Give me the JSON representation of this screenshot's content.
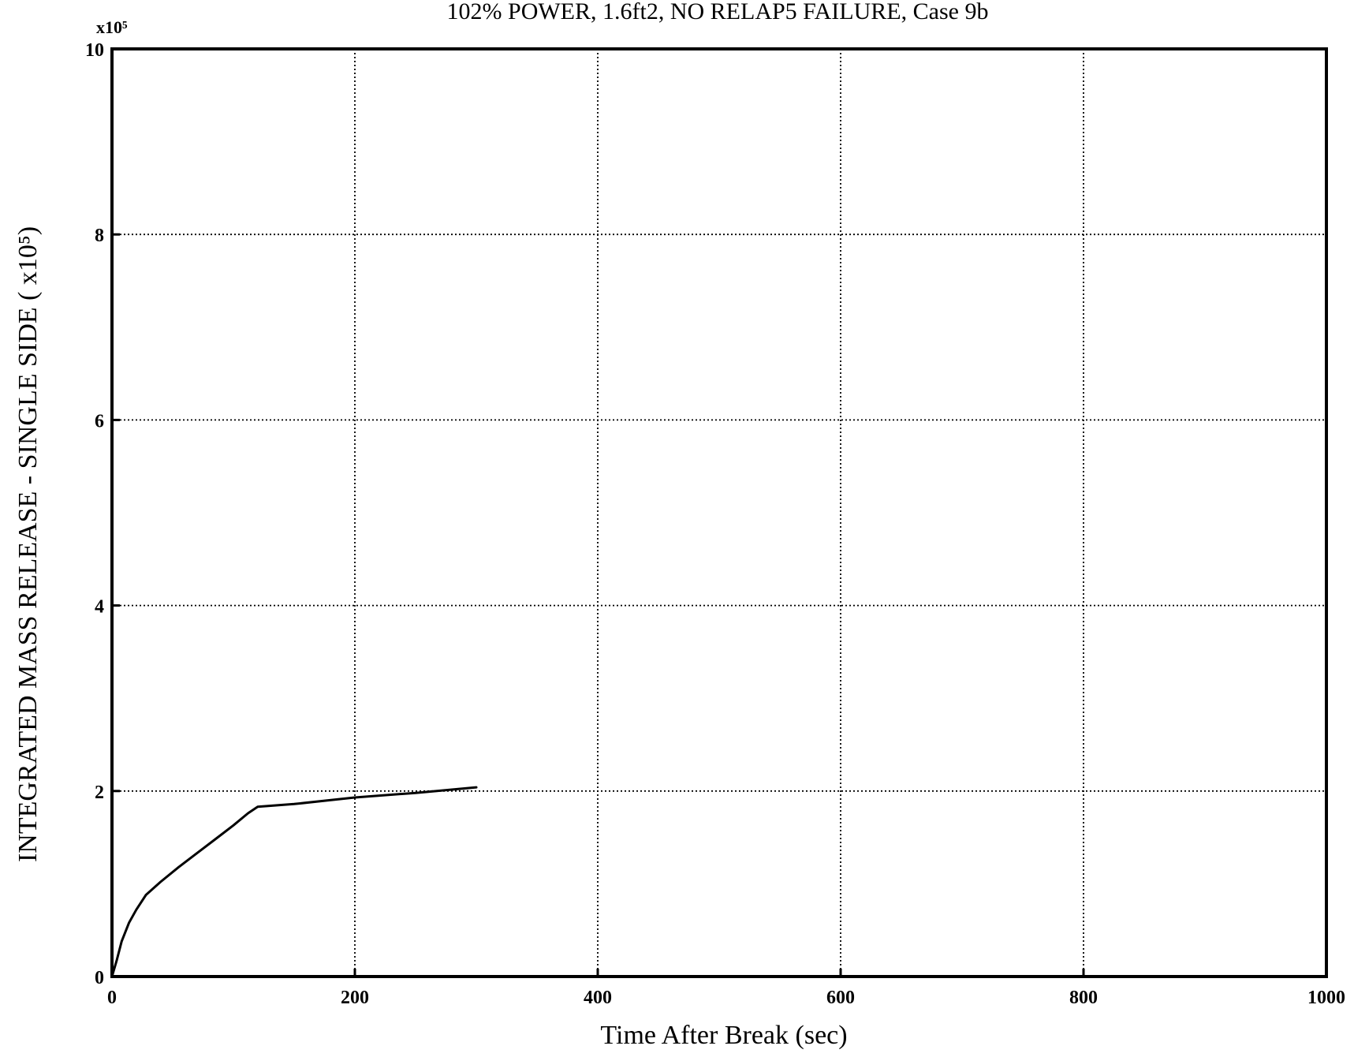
{
  "chart_data": {
    "type": "line",
    "title": "102% POWER, 1.6ft2, NO RELAP5 FAILURE, Case 9b",
    "xlabel": "Time After Break (sec)",
    "ylabel": "INTEGRATED MASS RELEASE - SINGLE SIDE  ( x10⁵)",
    "y_multiplier_label": "x10⁵",
    "xlim": [
      0,
      1000
    ],
    "ylim": [
      0,
      10
    ],
    "x_ticks": [
      "0",
      "200",
      "400",
      "600",
      "800",
      "1000"
    ],
    "y_ticks": [
      "0",
      "2",
      "4",
      "6",
      "8",
      "10"
    ],
    "grid": true,
    "series": [
      {
        "x": [
          0,
          4,
          8,
          14,
          20,
          28,
          40,
          55,
          70,
          85,
          100,
          112,
          120,
          150,
          200,
          250,
          300
        ],
        "y": [
          0,
          0.18,
          0.38,
          0.58,
          0.72,
          0.88,
          1.02,
          1.18,
          1.33,
          1.48,
          1.63,
          1.76,
          1.83,
          1.86,
          1.93,
          1.98,
          2.04
        ]
      }
    ]
  }
}
